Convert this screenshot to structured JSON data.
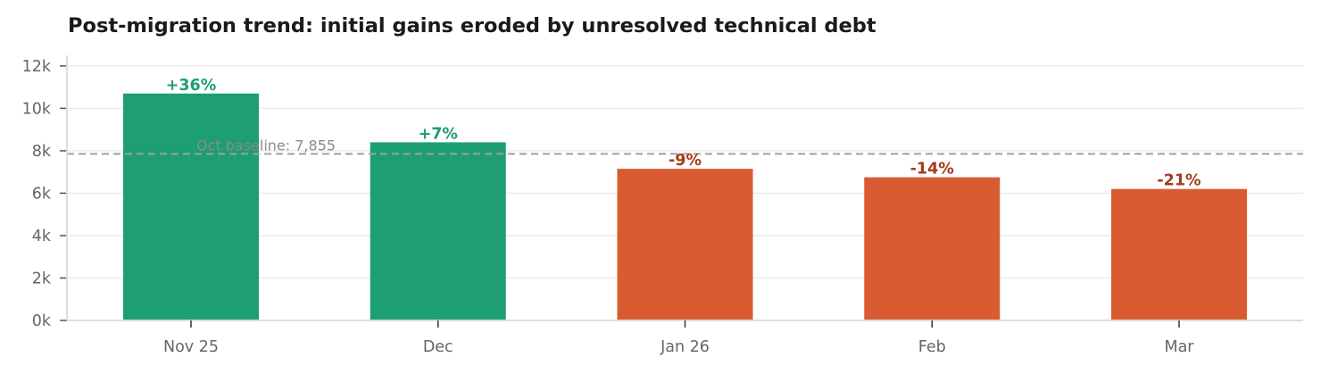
{
  "chart_data": {
    "type": "bar",
    "title": "Post-migration trend: initial gains eroded by unresolved technical debt",
    "xlabel": "",
    "ylabel": "",
    "categories": [
      "Nov 25",
      "Dec",
      "Jan 26",
      "Feb",
      "Mar"
    ],
    "values": [
      10700,
      8400,
      7150,
      6750,
      6200
    ],
    "data_labels": [
      "+36%",
      "+7%",
      "-9%",
      "-14%",
      "-21%"
    ],
    "ylim": [
      0,
      12500
    ],
    "yticks": [
      0,
      2000,
      4000,
      6000,
      8000,
      10000,
      12000
    ],
    "ytick_labels": [
      "0k",
      "2k",
      "4k",
      "6k",
      "8k",
      "10k",
      "12k"
    ],
    "baseline": {
      "value": 7855,
      "label": "Oct baseline: 7,855"
    },
    "grid": "horizontal",
    "colors": {
      "positive_bar": "#1e9e73",
      "negative_bar": "#d95b32",
      "positive_label": "#1e9e73",
      "negative_label": "#a33a1a",
      "baseline": "#a0a0a0",
      "grid": "#ececec",
      "axis": "#dddddd"
    }
  }
}
